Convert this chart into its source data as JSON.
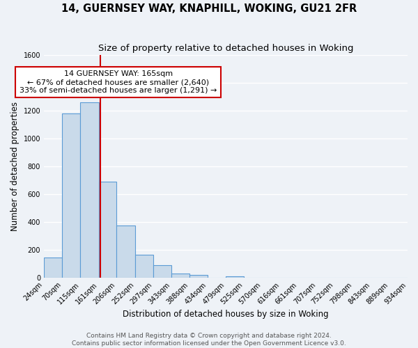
{
  "title": "14, GUERNSEY WAY, KNAPHILL, WOKING, GU21 2FR",
  "subtitle": "Size of property relative to detached houses in Woking",
  "xlabel": "Distribution of detached houses by size in Woking",
  "ylabel": "Number of detached properties",
  "bin_edges": [
    24,
    70,
    115,
    161,
    206,
    252,
    297,
    343,
    388,
    434,
    479,
    525,
    570,
    616,
    661,
    707,
    752,
    798,
    843,
    889,
    934
  ],
  "bar_heights": [
    148,
    1180,
    1260,
    690,
    375,
    165,
    90,
    32,
    22,
    0,
    10,
    0,
    0,
    0,
    0,
    0,
    0,
    0,
    0,
    0
  ],
  "bar_color": "#c9daea",
  "bar_edge_color": "#5b9bd5",
  "bar_alpha": 1.0,
  "property_size": 165,
  "annotation_title": "14 GUERNSEY WAY: 165sqm",
  "annotation_line1": "← 67% of detached houses are smaller (2,640)",
  "annotation_line2": "33% of semi-detached houses are larger (1,291) →",
  "annotation_box_color": "white",
  "annotation_box_edge_color": "#cc0000",
  "vline_color": "#cc0000",
  "ylim": [
    0,
    1600
  ],
  "yticks": [
    0,
    200,
    400,
    600,
    800,
    1000,
    1200,
    1400,
    1600
  ],
  "tick_labels": [
    "24sqm",
    "70sqm",
    "115sqm",
    "161sqm",
    "206sqm",
    "252sqm",
    "297sqm",
    "343sqm",
    "388sqm",
    "434sqm",
    "479sqm",
    "525sqm",
    "570sqm",
    "616sqm",
    "661sqm",
    "707sqm",
    "752sqm",
    "798sqm",
    "843sqm",
    "889sqm",
    "934sqm"
  ],
  "footer_line1": "Contains HM Land Registry data © Crown copyright and database right 2024.",
  "footer_line2": "Contains public sector information licensed under the Open Government Licence v3.0.",
  "bg_color": "#eef2f7",
  "plot_bg_color": "#eef2f7",
  "grid_color": "white",
  "title_fontsize": 10.5,
  "subtitle_fontsize": 9.5,
  "axis_label_fontsize": 8.5,
  "tick_fontsize": 7,
  "annotation_fontsize": 8,
  "footer_fontsize": 6.5
}
